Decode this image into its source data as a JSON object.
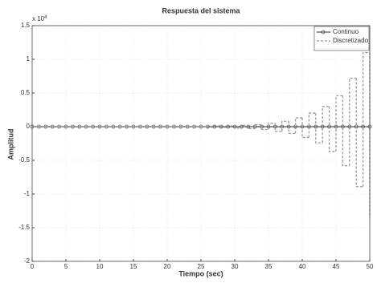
{
  "chart_data": {
    "type": "line",
    "title": "Respuesta del sistema",
    "x_label": "Tiempo (sec)",
    "y_label": "Amplitud",
    "axis_multiplier": {
      "base": "x 10",
      "exponent": "4"
    },
    "xlim": [
      0,
      50
    ],
    "xticks": [
      0,
      5,
      10,
      15,
      20,
      25,
      30,
      35,
      40,
      45,
      50
    ],
    "ylim": [
      -2,
      1.5
    ],
    "yticks": [
      -2,
      -1.5,
      -1,
      -0.5,
      0,
      0.5,
      1,
      1.5
    ],
    "grid": true,
    "legend": "upper right",
    "x": [
      0,
      1,
      2,
      3,
      4,
      5,
      6,
      7,
      8,
      9,
      10,
      11,
      12,
      13,
      14,
      15,
      16,
      17,
      18,
      19,
      20,
      21,
      22,
      23,
      24,
      25,
      26,
      27,
      28,
      29,
      30,
      31,
      32,
      33,
      34,
      35,
      36,
      37,
      38,
      39,
      40,
      41,
      42,
      43,
      44,
      45,
      46,
      47,
      48,
      49,
      50
    ],
    "series": [
      {
        "name": "Continuo",
        "color": "#555555",
        "style": "solid-markers",
        "values": [
          0,
          0,
          0,
          0,
          0,
          0,
          0,
          0,
          0,
          0,
          0,
          0,
          0,
          0,
          0,
          0,
          0,
          0,
          0,
          0,
          0,
          0,
          0,
          0,
          0,
          0,
          0,
          0,
          0,
          0,
          0,
          0,
          0,
          0,
          0,
          0,
          0,
          0,
          0,
          0,
          0,
          0,
          0,
          0,
          0,
          0,
          0,
          0,
          0,
          0,
          0
        ]
      },
      {
        "name": "Discretizado",
        "color": "#999999",
        "style": "dashed-steps",
        "values": [
          0,
          0,
          0,
          0,
          0,
          0,
          0,
          0,
          0,
          0,
          0,
          0,
          0,
          0,
          0,
          0,
          0,
          0,
          0,
          0,
          0,
          0,
          0,
          0,
          0,
          0,
          -0.01,
          0.01,
          -0.01,
          0.01,
          -0.02,
          0.02,
          -0.03,
          0.03,
          -0.04,
          0.05,
          -0.07,
          0.08,
          -0.1,
          0.13,
          -0.16,
          0.2,
          -0.24,
          0.3,
          -0.37,
          0.46,
          -0.58,
          0.72,
          -0.89,
          1.1,
          -1.36
        ]
      }
    ]
  }
}
